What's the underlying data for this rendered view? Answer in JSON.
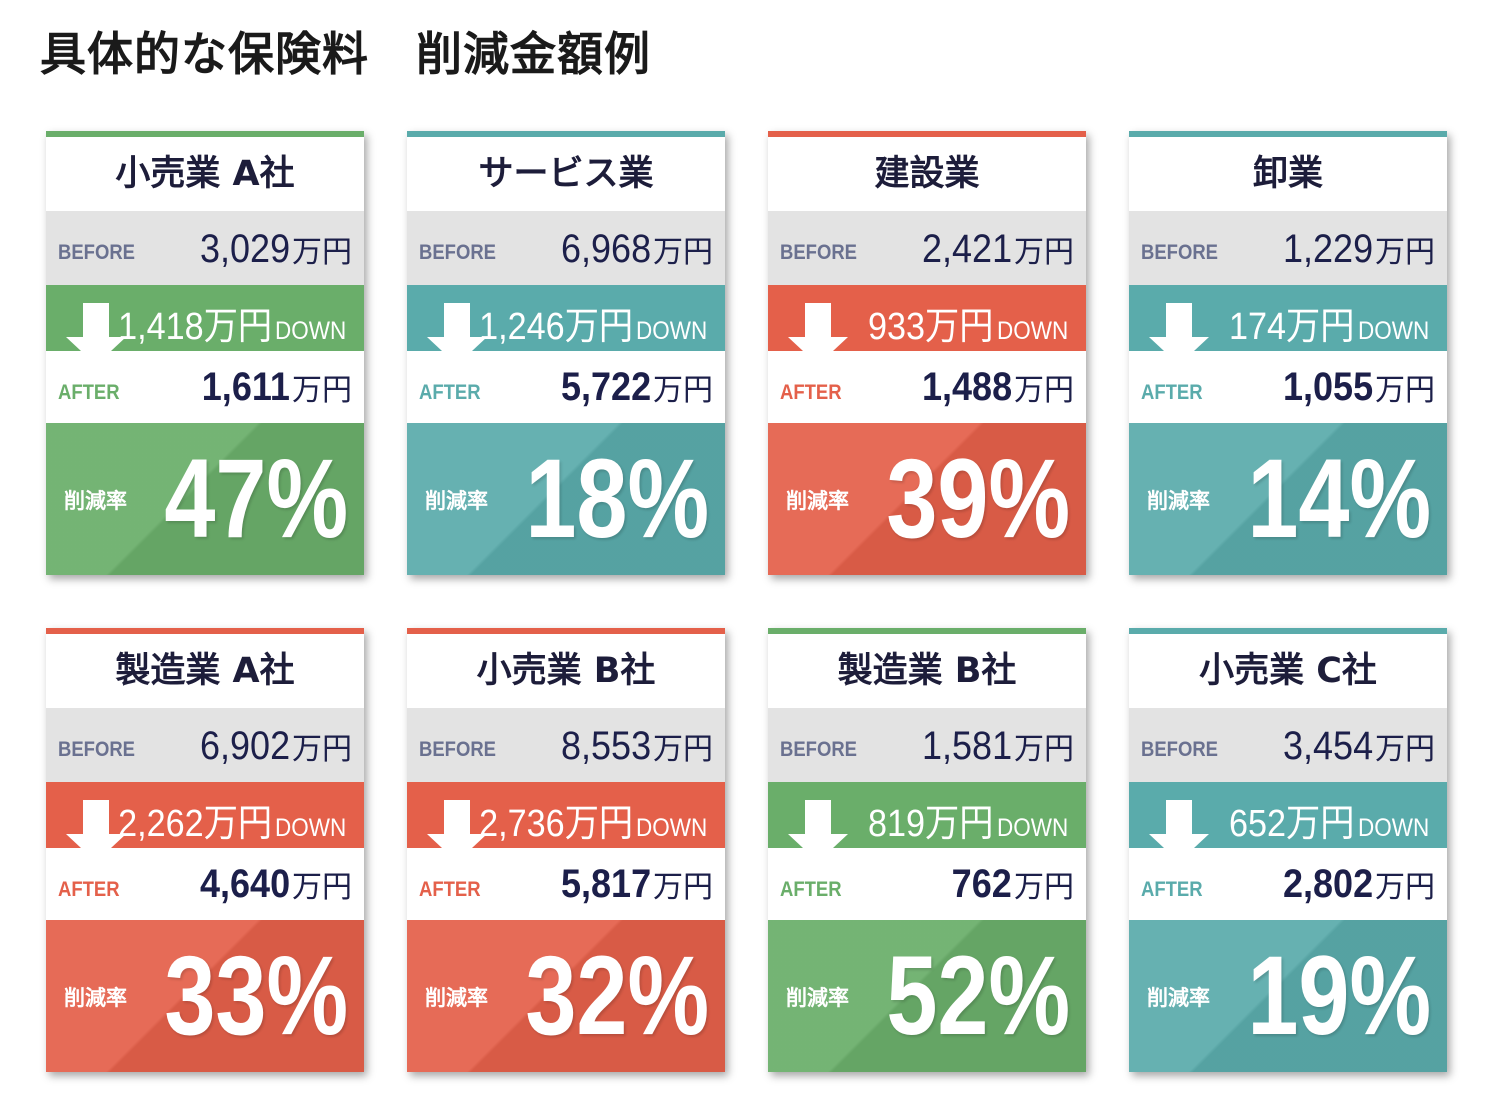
{
  "page_title": "具体的な保険料　削減金額例",
  "labels": {
    "before": "BEFORE",
    "after": "AFTER",
    "unit": "万円",
    "down_word": "DOWN",
    "rate_label": "削減率"
  },
  "theme_colors": {
    "green": "#6aae6a",
    "teal": "#5aabab",
    "red": "#e4604a",
    "navy_text": "#1c1f4a"
  },
  "cards": [
    {
      "title": "小売業 A社",
      "color": "green",
      "before": "3,029",
      "down": "1,418万円",
      "after": "1,611",
      "rate": "47%",
      "rate_value": 47
    },
    {
      "title": "サービス業",
      "color": "teal",
      "before": "6,968",
      "down": "1,246万円",
      "after": "5,722",
      "rate": "18%",
      "rate_value": 18
    },
    {
      "title": "建設業",
      "color": "red",
      "before": "2,421",
      "down": "933万円",
      "after": "1,488",
      "rate": "39%",
      "rate_value": 39
    },
    {
      "title": "卸業",
      "color": "teal",
      "before": "1,229",
      "down": "174万円",
      "after": "1,055",
      "rate": "14%",
      "rate_value": 14
    },
    {
      "title": "製造業 A社",
      "color": "red",
      "before": "6,902",
      "down": "2,262万円",
      "after": "4,640",
      "rate": "33%",
      "rate_value": 33
    },
    {
      "title": "小売業 B社",
      "color": "red",
      "before": "8,553",
      "down": "2,736万円",
      "after": "5,817",
      "rate": "32%",
      "rate_value": 32
    },
    {
      "title": "製造業 B社",
      "color": "green",
      "before": "1,581",
      "down": "819万円",
      "after": "762",
      "rate": "52%",
      "rate_value": 52
    },
    {
      "title": "小売業 C社",
      "color": "teal",
      "before": "3,454",
      "down": "652万円",
      "after": "2,802",
      "rate": "19%",
      "rate_value": 19
    }
  ]
}
